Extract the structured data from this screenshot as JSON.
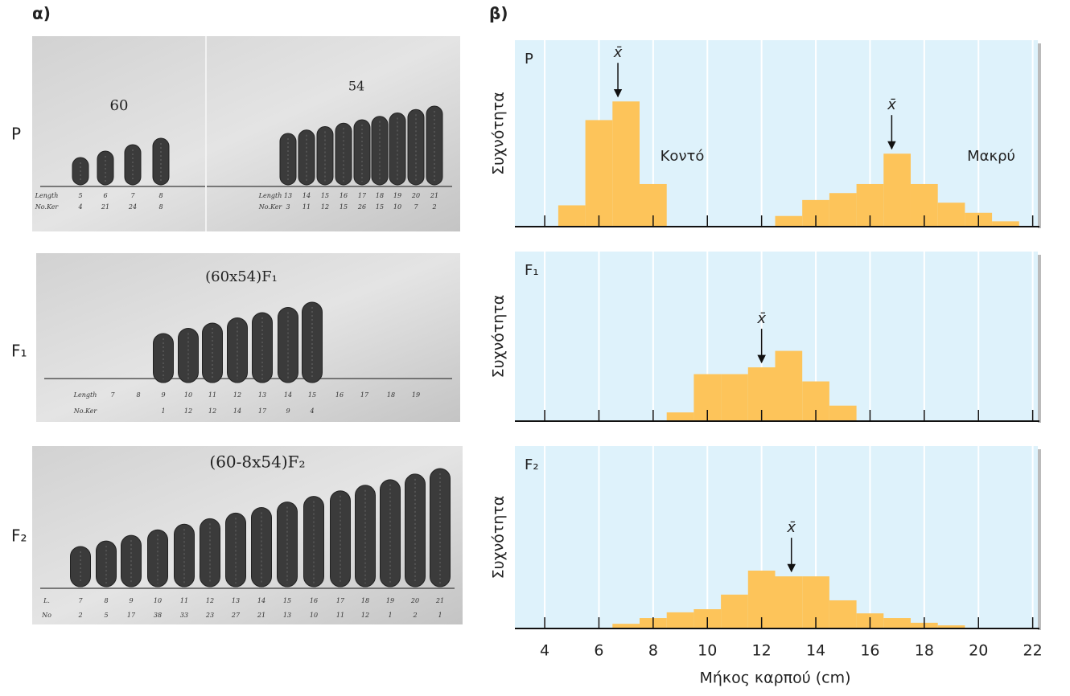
{
  "panel_a": {
    "label": "α)",
    "photos": [
      {
        "row_label": "P",
        "groups": [
          {
            "caption": "60",
            "length_heading": "Length",
            "count_heading": "No.Ker",
            "lengths": [
              5,
              6,
              7,
              8
            ],
            "counts": [
              4,
              21,
              24,
              8
            ]
          },
          {
            "caption": "54",
            "length_heading": "Length",
            "count_heading": "No.Ker",
            "lengths": [
              13,
              14,
              15,
              16,
              17,
              18,
              19,
              20,
              21
            ],
            "counts": [
              3,
              11,
              12,
              15,
              26,
              15,
              10,
              7,
              2
            ]
          }
        ]
      },
      {
        "row_label": "F₁",
        "groups": [
          {
            "caption": "(60x54)F₁",
            "length_heading": "Length",
            "count_heading": "No.Ker",
            "lengths": [
              7,
              8,
              9,
              10,
              11,
              12,
              13,
              14,
              15,
              16,
              17,
              18,
              19
            ],
            "counts": [
              null,
              null,
              1,
              12,
              12,
              14,
              17,
              9,
              4,
              null,
              null,
              null,
              null
            ]
          }
        ]
      },
      {
        "row_label": "F₂",
        "groups": [
          {
            "caption": "(60-8x54)F₂",
            "length_heading": "L.",
            "count_heading": "No",
            "lengths": [
              7,
              8,
              9,
              10,
              11,
              12,
              13,
              14,
              15,
              16,
              17,
              18,
              19,
              20,
              21
            ],
            "counts": [
              2,
              5,
              17,
              38,
              33,
              23,
              27,
              21,
              13,
              10,
              11,
              12,
              1,
              2,
              1
            ]
          }
        ]
      }
    ]
  },
  "panel_b_label": "β)",
  "chart_data": [
    {
      "type": "histogram",
      "panel_label": "P",
      "ylabel": "Συχνότητα",
      "color": "#fdc45a",
      "background": "#def2fb",
      "bins": [
        4.5,
        5.5,
        6.5,
        7.5,
        8.5,
        9.5,
        10.5,
        11.5,
        12.5,
        13.5,
        14.5,
        15.5,
        16.5,
        17.5,
        18.5,
        19.5,
        20.5,
        21.5
      ],
      "values": [
        4,
        20,
        23.5,
        8,
        0,
        0,
        0,
        0,
        2,
        5,
        6.3,
        8,
        13.7,
        8,
        4.5,
        2.6,
        1
      ],
      "means": [
        {
          "label": "x̄",
          "x": 6.7
        },
        {
          "label": "x̄",
          "x": 16.8
        }
      ],
      "annotations": [
        "Κοντό",
        "Μακρύ"
      ],
      "xlim": [
        2.9,
        22.1
      ],
      "ylim": [
        0,
        35
      ],
      "xticks": [
        4,
        6,
        8,
        10,
        12,
        14,
        16,
        18,
        20,
        22
      ],
      "grid": true
    },
    {
      "type": "histogram",
      "panel_label": "F₁",
      "ylabel": "Συχνότητα",
      "color": "#fdc45a",
      "background": "#def2fb",
      "bins": [
        8.5,
        9.5,
        10.5,
        11.5,
        12.5,
        13.5,
        14.5,
        15.5
      ],
      "values": [
        1.8,
        9.7,
        9.7,
        11.1,
        14.5,
        8.2,
        3.2
      ],
      "means": [
        {
          "label": "x̄",
          "x": 12
        }
      ],
      "xlim": [
        2.9,
        22.1
      ],
      "ylim": [
        0,
        35
      ],
      "xticks": [
        4,
        6,
        8,
        10,
        12,
        14,
        16,
        18,
        20,
        22
      ],
      "grid": true
    },
    {
      "type": "histogram",
      "panel_label": "F₂",
      "ylabel": "Συχνότητα",
      "xlabel": "Μήκος καρπού (cm)",
      "color": "#fdc45a",
      "background": "#def2fb",
      "bins": [
        6.5,
        7.5,
        8.5,
        9.5,
        10.5,
        11.5,
        12.5,
        13.5,
        14.5,
        15.5,
        16.5,
        17.5,
        18.5,
        19.5
      ],
      "values": [
        0.9,
        2,
        3.1,
        3.7,
        6.5,
        11.1,
        10,
        10,
        5.4,
        2.9,
        2,
        1.1,
        0.6
      ],
      "means": [
        {
          "label": "x̄",
          "x": 13.1
        }
      ],
      "xlim": [
        2.9,
        22.1
      ],
      "ylim": [
        0,
        35
      ],
      "xticks": [
        4,
        6,
        8,
        10,
        12,
        14,
        16,
        18,
        20,
        22
      ],
      "grid": true,
      "show_tick_labels": true
    }
  ]
}
